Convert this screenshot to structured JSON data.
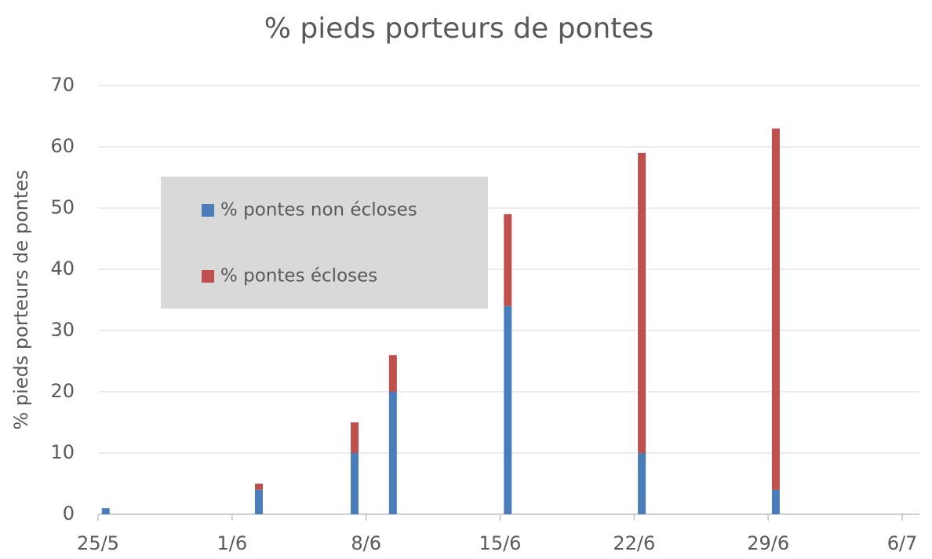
{
  "chart_data": {
    "type": "stacked_bar",
    "title": "% pieds porteurs de pontes",
    "y_label": "% pieds porteurs de pontes",
    "x": [
      "25/5",
      "2/6",
      "7/6",
      "9/6",
      "15/6",
      "22/6",
      "29/6"
    ],
    "series": [
      {
        "name": "% pontes non écloses",
        "color": "#4a7ebb",
        "values": [
          1,
          4,
          10,
          20,
          34,
          10,
          4
        ]
      },
      {
        "name": "% pontes écloses",
        "color": "#c0504d",
        "values": [
          0,
          1,
          5,
          6,
          15,
          49,
          59
        ]
      }
    ],
    "xlim": [
      "25/5",
      "6/7"
    ],
    "xticks": [
      "25/5",
      "1/6",
      "8/6",
      "15/6",
      "22/6",
      "29/6",
      "6/7"
    ],
    "ylim": [
      0,
      70
    ],
    "yticks": [
      0,
      10,
      20,
      30,
      40,
      50,
      60,
      70
    ],
    "grid": true,
    "legend": "upper left"
  }
}
